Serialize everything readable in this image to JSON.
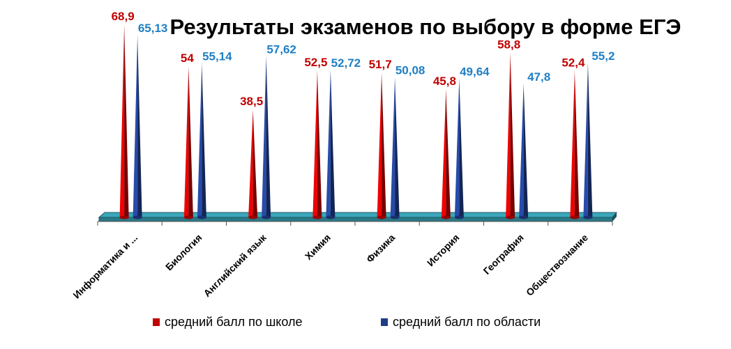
{
  "chart_data": {
    "type": "bar",
    "title": "Результаты экзаменов по выбору в форме ЕГЭ",
    "categories": [
      "Информатика и ...",
      "Биология",
      "Английский язык",
      "Химия",
      "Физика",
      "История",
      "География",
      "Обществознание"
    ],
    "series": [
      {
        "name": "средний балл по школе",
        "color": "#c00000",
        "values": [
          68.9,
          54,
          38.5,
          52.5,
          51.7,
          45.8,
          58.8,
          52.4
        ],
        "labels": [
          "68,9",
          "54",
          "38,5",
          "52,5",
          "51,7",
          "45,8",
          "58,8",
          "52,4"
        ]
      },
      {
        "name": "средний балл по области",
        "color": "#1f3c88",
        "values": [
          65.13,
          55.14,
          57.62,
          52.72,
          50.08,
          49.64,
          47.8,
          55.2
        ],
        "labels": [
          "65,13",
          "55,14",
          "57,62",
          "52,72",
          "50,08",
          "49,64",
          "47,8",
          "55,2"
        ]
      }
    ],
    "label_colors": [
      "#c00000",
      "#1f7fc4"
    ],
    "floor_color": "#3aa6b9",
    "ylim": [
      0,
      75
    ],
    "legend_position": "bottom",
    "grid": false,
    "xlabel": "",
    "ylabel": ""
  }
}
